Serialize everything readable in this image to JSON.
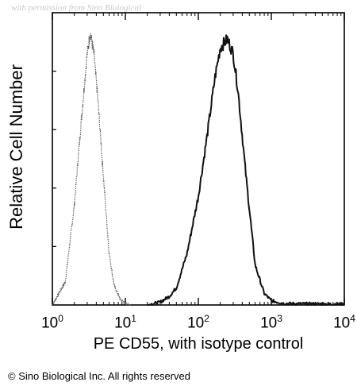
{
  "watermark": "with permission from Sino Biological",
  "copyright": "© Sino Biological Inc. All rights reserved",
  "chart_data": {
    "type": "line",
    "title": "",
    "xlabel": "PE CD55, with isotype control",
    "ylabel": "Relative Cell Number",
    "x_scale": "log",
    "xlim": [
      1,
      10000
    ],
    "x_ticks": [
      {
        "base": "10",
        "exp": "0"
      },
      {
        "base": "10",
        "exp": "1"
      },
      {
        "base": "10",
        "exp": "2"
      },
      {
        "base": "10",
        "exp": "3"
      },
      {
        "base": "10",
        "exp": "4"
      }
    ],
    "grid": false,
    "legend": "none",
    "series": [
      {
        "style": "dotted",
        "color": "#555555",
        "x": [
          1.0,
          1.5,
          2.0,
          2.5,
          3.0,
          3.3,
          3.7,
          4.2,
          5.0,
          6.0,
          7.0,
          8.5,
          10.0,
          12.0
        ],
        "y": [
          0.0,
          0.08,
          0.35,
          0.65,
          0.88,
          0.95,
          0.88,
          0.72,
          0.45,
          0.18,
          0.07,
          0.02,
          0.005,
          0.0
        ]
      },
      {
        "style": "solid",
        "color": "#111111",
        "x": [
          20,
          30,
          40,
          50,
          70,
          100,
          130,
          170,
          200,
          250,
          300,
          350,
          450,
          600,
          800,
          1000,
          1500,
          3000,
          10000
        ],
        "y": [
          0.0,
          0.01,
          0.03,
          0.06,
          0.18,
          0.38,
          0.58,
          0.8,
          0.9,
          0.93,
          0.88,
          0.75,
          0.45,
          0.14,
          0.04,
          0.015,
          0.005,
          0.004,
          0.003
        ]
      }
    ]
  }
}
